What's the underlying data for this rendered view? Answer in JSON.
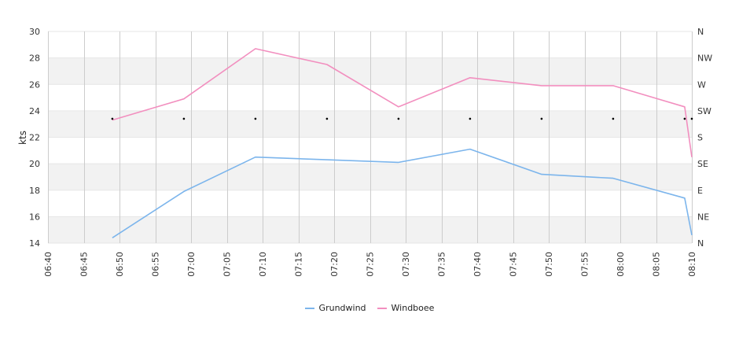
{
  "chart_data": {
    "type": "line",
    "ylabel": "kts",
    "ylim": [
      14,
      30
    ],
    "yticks": [
      "14",
      "16",
      "18",
      "20",
      "22",
      "24",
      "26",
      "28",
      "30"
    ],
    "y2ticks": [
      "N",
      "NE",
      "E",
      "SE",
      "S",
      "SW",
      "W",
      "NW",
      "N"
    ],
    "xlim": [
      "06:40",
      "08:10"
    ],
    "xticks": [
      "06:40",
      "06:45",
      "06:50",
      "06:55",
      "07:00",
      "07:05",
      "07:10",
      "07:15",
      "07:20",
      "07:25",
      "07:30",
      "07:35",
      "07:40",
      "07:45",
      "07:50",
      "07:55",
      "08:00",
      "08:05",
      "08:10"
    ],
    "grid": true,
    "legend_position": "bottom",
    "series": [
      {
        "name": "Grundwind",
        "color": "#7cb5ec",
        "x": [
          "06:49",
          "06:59",
          "07:09",
          "07:19",
          "07:29",
          "07:39",
          "07:49",
          "07:59",
          "08:09",
          "08:10"
        ],
        "values": [
          14.4,
          17.9,
          20.5,
          20.3,
          20.1,
          21.1,
          19.2,
          18.9,
          17.4,
          14.6
        ]
      },
      {
        "name": "Windboee",
        "color": "#f28fbf",
        "x": [
          "06:49",
          "06:59",
          "07:09",
          "07:19",
          "07:29",
          "07:39",
          "07:49",
          "07:59",
          "08:09",
          "08:10"
        ],
        "values": [
          23.3,
          24.9,
          28.7,
          27.5,
          24.3,
          26.5,
          25.9,
          25.9,
          24.3,
          20.5
        ]
      }
    ],
    "direction_markers": {
      "x": [
        "06:49",
        "06:59",
        "07:09",
        "07:19",
        "07:29",
        "07:39",
        "07:49",
        "07:59",
        "08:09",
        "08:10"
      ],
      "values": [
        23.4,
        23.4,
        23.4,
        23.4,
        23.4,
        23.4,
        23.4,
        23.4,
        23.4,
        23.4
      ],
      "color": "#000000"
    },
    "band_colors": [
      "#ffffff",
      "#f2f2f2"
    ],
    "grid_color": "#cccccc"
  }
}
